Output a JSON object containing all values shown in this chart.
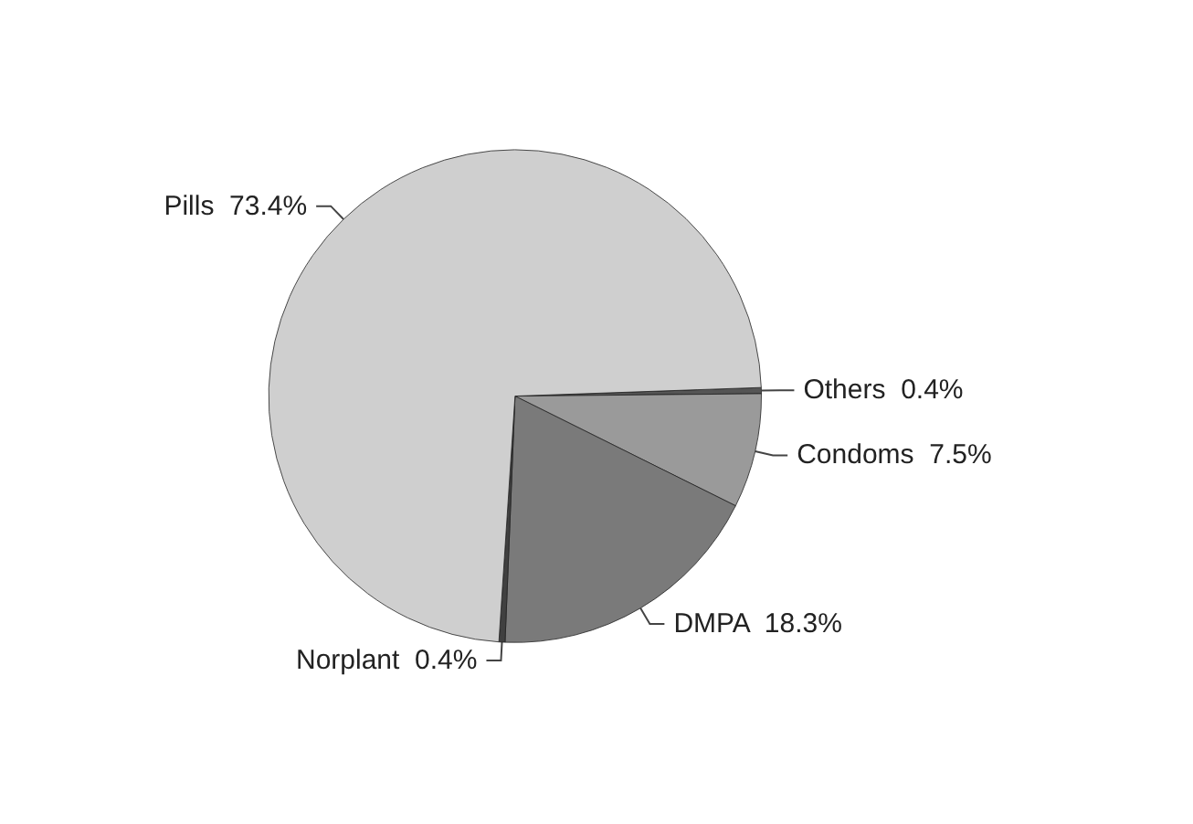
{
  "chart_data": {
    "type": "pie",
    "categories": [
      "Others",
      "Condoms",
      "DMPA",
      "Norplant",
      "Pills"
    ],
    "values": [
      0.4,
      7.5,
      18.3,
      0.4,
      73.4
    ],
    "value_labels": [
      "0.4%",
      "7.5%",
      "18.3%",
      "0.4%",
      "73.4%"
    ],
    "colors": [
      "#555555",
      "#9a9a9a",
      "#7a7a7a",
      "#404040",
      "#cfcfcf"
    ],
    "legend": false
  }
}
